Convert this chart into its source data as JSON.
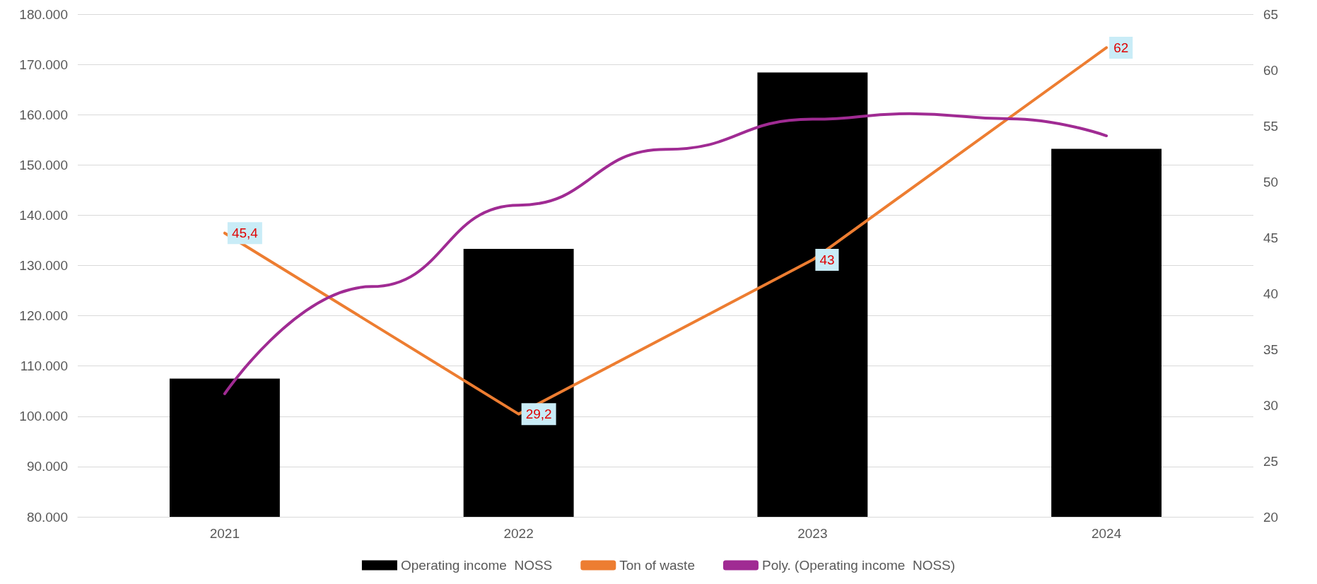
{
  "chart_data": {
    "type": "bar",
    "x": [
      2021,
      2022,
      2023,
      2024
    ],
    "xlim": [
      2020.5,
      2024.5
    ],
    "xticks": [
      2021,
      2022,
      2023,
      2024
    ],
    "series": [
      {
        "name": "Operating income  NOSS",
        "color": "#000000",
        "values": [
          107500,
          133300,
          168400,
          153200
        ]
      },
      {
        "name": "Ton of waste",
        "type": "line",
        "axis": "y2",
        "color": "#ed7d31",
        "values": [
          45.4,
          29.2,
          43,
          62
        ],
        "value_labels": [
          "45,4",
          "29,2",
          "43",
          "62"
        ]
      },
      {
        "name": "Poly. (Operating income  NOSS)",
        "type": "line",
        "color": "#a02b93",
        "x": [
          2021,
          2021.5,
          2022,
          2022.5,
          2023,
          2023.33,
          2023.67,
          2024
        ],
        "values": [
          104500,
          125800,
          142000,
          153100,
          159100,
          160200,
          159200,
          155800
        ]
      }
    ],
    "ylim": [
      80000,
      180000
    ],
    "yticks": [
      {
        "value": 80000,
        "label": "80.000"
      },
      {
        "value": 90000,
        "label": "90.000"
      },
      {
        "value": 100000,
        "label": "100.000"
      },
      {
        "value": 110000,
        "label": "110.000"
      },
      {
        "value": 120000,
        "label": "120.000"
      },
      {
        "value": 130000,
        "label": "130.000"
      },
      {
        "value": 140000,
        "label": "140.000"
      },
      {
        "value": 150000,
        "label": "150.000"
      },
      {
        "value": 160000,
        "label": "160.000"
      },
      {
        "value": 170000,
        "label": "170.000"
      },
      {
        "value": 180000,
        "label": "180.000"
      }
    ],
    "y2lim": [
      20,
      65
    ],
    "y2ticks": [
      20,
      25,
      30,
      35,
      40,
      45,
      50,
      55,
      60,
      65
    ],
    "grid": "y",
    "legend": "bottom",
    "marker": "none",
    "line_style": "solid"
  }
}
